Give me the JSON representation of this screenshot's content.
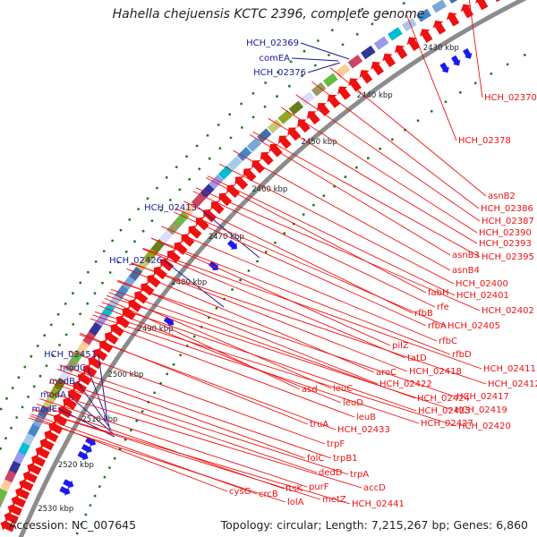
{
  "title": "Hahella chejuensis KCTC 2396, complete genome",
  "footer": {
    "accession": "Accession: NC_007645",
    "summary": "Topology: circular; Length: 7,215,267 bp; Genes: 6,860"
  },
  "ticks": [
    {
      "label": "2430 kbp"
    },
    {
      "label": "2440 kbp"
    },
    {
      "label": "2450 kbp"
    },
    {
      "label": "2460 kbp"
    },
    {
      "label": "2470 kbp"
    },
    {
      "label": "2480 kbp"
    },
    {
      "label": "2490 kbp"
    },
    {
      "label": "2500 kbp"
    },
    {
      "label": "2510 kbp"
    },
    {
      "label": "2520 kbp"
    },
    {
      "label": "2530 kbp"
    }
  ],
  "left_labels": [
    {
      "text": "HCH_02369"
    },
    {
      "text": "comEA"
    },
    {
      "text": "HCH_02376"
    },
    {
      "text": "HCH_02413"
    },
    {
      "text": "HCH_02426"
    },
    {
      "text": "HCH_02451"
    },
    {
      "text": "modC"
    },
    {
      "text": "modB"
    },
    {
      "text": "modA"
    },
    {
      "text": "modE"
    }
  ],
  "right_labels": [
    {
      "text": "HCH_02370"
    },
    {
      "text": "HCH_02378"
    },
    {
      "text": "asnB2"
    },
    {
      "text": "HCH_02386"
    },
    {
      "text": "HCH_02387"
    },
    {
      "text": "HCH_02390"
    },
    {
      "text": "HCH_02393"
    },
    {
      "text": "asnB3"
    },
    {
      "text": "HCH_02395"
    },
    {
      "text": "asnB4"
    },
    {
      "text": "HCH_02400"
    },
    {
      "text": "fabH"
    },
    {
      "text": "HCH_02401"
    },
    {
      "text": "rfe"
    },
    {
      "text": "rfbB"
    },
    {
      "text": "HCH_02402"
    },
    {
      "text": "rfbA"
    },
    {
      "text": "HCH_02405"
    },
    {
      "text": "pilZ"
    },
    {
      "text": "rfbC"
    },
    {
      "text": "tatD"
    },
    {
      "text": "rfbD"
    },
    {
      "text": "aroC"
    },
    {
      "text": "HCH_02418"
    },
    {
      "text": "HCH_02411"
    },
    {
      "text": "HCH_02422"
    },
    {
      "text": "HCH_02412"
    },
    {
      "text": "asd"
    },
    {
      "text": "leuC"
    },
    {
      "text": "HCH_02424"
    },
    {
      "text": "HCH_02417"
    },
    {
      "text": "leuD"
    },
    {
      "text": "HCH_02425"
    },
    {
      "text": "HCH_02419"
    },
    {
      "text": "leuB"
    },
    {
      "text": "HCH_02427"
    },
    {
      "text": "HCH_02420"
    },
    {
      "text": "truA"
    },
    {
      "text": "HCH_02433"
    },
    {
      "text": "trpF"
    },
    {
      "text": "folC"
    },
    {
      "text": "trpB1"
    },
    {
      "text": "dedD"
    },
    {
      "text": "trpA"
    },
    {
      "text": "accD"
    },
    {
      "text": "cysG"
    },
    {
      "text": "crcB"
    },
    {
      "text": "ftsK"
    },
    {
      "text": "purF"
    },
    {
      "text": "lolA"
    },
    {
      "text": "metZ"
    },
    {
      "text": "HCH_02441"
    }
  ],
  "colors": {
    "backbone": "#8c8c8c",
    "forward": "#1a1aee",
    "reverse": "#ee1111",
    "tick": "#227722",
    "label_left": "#1a1a99",
    "label_right": "#ee1111"
  }
}
